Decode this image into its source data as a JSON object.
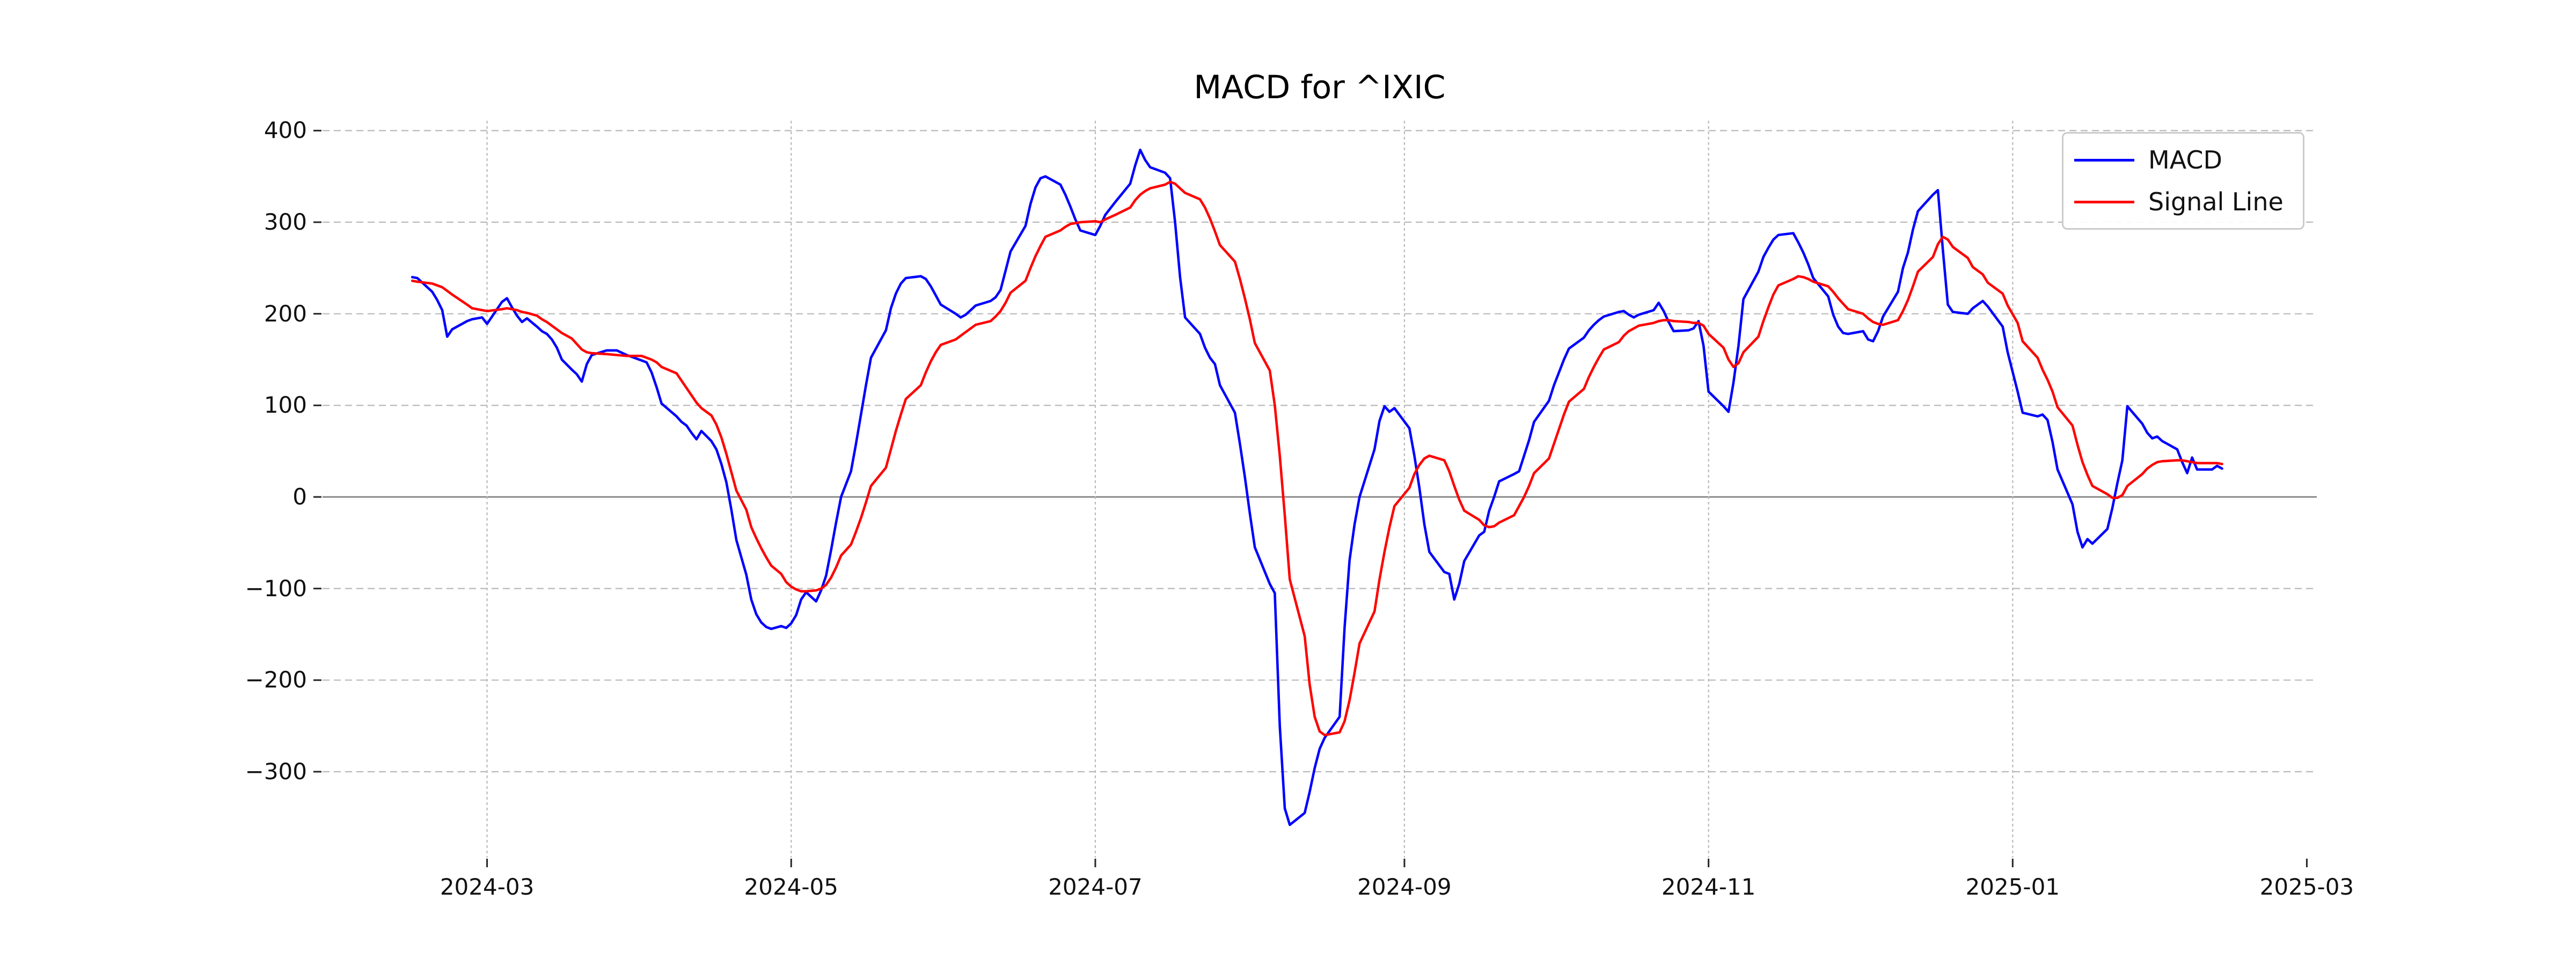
{
  "title": "MACD for ^IXIC",
  "legend": {
    "items": [
      {
        "label": "MACD",
        "color": "#0000ff"
      },
      {
        "label": "Signal Line",
        "color": "#ff0000"
      }
    ]
  },
  "colors": {
    "macd_line": "#0000ff",
    "signal_line": "#ff0000",
    "grid": "#b9b9b9",
    "zero_line": "#808080",
    "tick": "#262626",
    "text": "#111111",
    "legend_border": "#cbcbcb"
  },
  "chart_data": {
    "type": "line",
    "title": "MACD for ^IXIC",
    "xlabel": "",
    "ylabel": "",
    "legend_position": "upper right",
    "grid": true,
    "zero_line": true,
    "x_axis": {
      "type": "date",
      "tick_labels": [
        "2024-03",
        "2024-05",
        "2024-07",
        "2024-09",
        "2024-11",
        "2025-01",
        "2025-03"
      ],
      "range": [
        "2024-01-28",
        "2025-03-02"
      ]
    },
    "y_axis": {
      "ticks": [
        400,
        300,
        200,
        100,
        0,
        -100,
        -200,
        -300
      ],
      "range": [
        -395,
        415
      ]
    },
    "points": [
      [
        "2024-02-15",
        240,
        236
      ],
      [
        "2024-02-16",
        239,
        235
      ],
      [
        "2024-02-19",
        224,
        233
      ],
      [
        "2024-02-20",
        215,
        231
      ],
      [
        "2024-02-21",
        204,
        229
      ],
      [
        "2024-02-22",
        175,
        225
      ],
      [
        "2024-02-23",
        183,
        221
      ],
      [
        "2024-02-26",
        192,
        210
      ],
      [
        "2024-02-27",
        194,
        206
      ],
      [
        "2024-02-29",
        196,
        204
      ],
      [
        "2024-03-01",
        189,
        203
      ],
      [
        "2024-03-04",
        213,
        205
      ],
      [
        "2024-03-05",
        217,
        206
      ],
      [
        "2024-03-06",
        207,
        205
      ],
      [
        "2024-03-07",
        198,
        204
      ],
      [
        "2024-03-08",
        191,
        202
      ],
      [
        "2024-03-09",
        195,
        201
      ],
      [
        "2024-03-11",
        186,
        198
      ],
      [
        "2024-03-12",
        181,
        194
      ],
      [
        "2024-03-13",
        178,
        191
      ],
      [
        "2024-03-14",
        172,
        187
      ],
      [
        "2024-03-15",
        163,
        183
      ],
      [
        "2024-03-16",
        150,
        179
      ],
      [
        "2024-03-18",
        139,
        173
      ],
      [
        "2024-03-19",
        134,
        167
      ],
      [
        "2024-03-20",
        126,
        161
      ],
      [
        "2024-03-21",
        145,
        158
      ],
      [
        "2024-03-22",
        155,
        157
      ],
      [
        "2024-03-25",
        160,
        156
      ],
      [
        "2024-03-27",
        160,
        155
      ],
      [
        "2024-03-29",
        155,
        154
      ],
      [
        "2024-04-01",
        149,
        154
      ],
      [
        "2024-04-02",
        147,
        152
      ],
      [
        "2024-04-03",
        136,
        150
      ],
      [
        "2024-04-04",
        120,
        147
      ],
      [
        "2024-04-05",
        102,
        142
      ],
      [
        "2024-04-08",
        88,
        135
      ],
      [
        "2024-04-09",
        82,
        127
      ],
      [
        "2024-04-10",
        78,
        119
      ],
      [
        "2024-04-11",
        70,
        111
      ],
      [
        "2024-04-12",
        63,
        103
      ],
      [
        "2024-04-13",
        72,
        97
      ],
      [
        "2024-04-15",
        61,
        89
      ],
      [
        "2024-04-16",
        52,
        79
      ],
      [
        "2024-04-17",
        36,
        65
      ],
      [
        "2024-04-18",
        16,
        47
      ],
      [
        "2024-04-19",
        -14,
        27
      ],
      [
        "2024-04-20",
        -47,
        7
      ],
      [
        "2024-04-22",
        -85,
        -14
      ],
      [
        "2024-04-23",
        -112,
        -33
      ],
      [
        "2024-04-24",
        -128,
        -45
      ],
      [
        "2024-04-25",
        -137,
        -56
      ],
      [
        "2024-04-26",
        -142,
        -66
      ],
      [
        "2024-04-27",
        -144,
        -75
      ],
      [
        "2024-04-29",
        -141,
        -84
      ],
      [
        "2024-04-30",
        -143,
        -93
      ],
      [
        "2024-05-01",
        -138,
        -98
      ],
      [
        "2024-05-02",
        -129,
        -101
      ],
      [
        "2024-05-03",
        -112,
        -103
      ],
      [
        "2024-05-04",
        -104,
        -103
      ],
      [
        "2024-05-06",
        -114,
        -102
      ],
      [
        "2024-05-07",
        -102,
        -100
      ],
      [
        "2024-05-08",
        -86,
        -96
      ],
      [
        "2024-05-09",
        -58,
        -88
      ],
      [
        "2024-05-10",
        -28,
        -77
      ],
      [
        "2024-05-11",
        0,
        -64
      ],
      [
        "2024-05-13",
        28,
        -52
      ],
      [
        "2024-05-14",
        58,
        -38
      ],
      [
        "2024-05-15",
        90,
        -23
      ],
      [
        "2024-05-16",
        122,
        -6
      ],
      [
        "2024-05-17",
        152,
        12
      ],
      [
        "2024-05-20",
        182,
        32
      ],
      [
        "2024-05-21",
        206,
        52
      ],
      [
        "2024-05-22",
        222,
        72
      ],
      [
        "2024-05-23",
        233,
        90
      ],
      [
        "2024-05-24",
        239,
        107
      ],
      [
        "2024-05-27",
        241,
        122
      ],
      [
        "2024-05-28",
        238,
        136
      ],
      [
        "2024-05-29",
        230,
        148
      ],
      [
        "2024-05-30",
        220,
        158
      ],
      [
        "2024-05-31",
        210,
        166
      ],
      [
        "2024-06-03",
        200,
        172
      ],
      [
        "2024-06-04",
        196,
        176
      ],
      [
        "2024-06-05",
        199,
        180
      ],
      [
        "2024-06-06",
        204,
        184
      ],
      [
        "2024-06-07",
        209,
        188
      ],
      [
        "2024-06-10",
        214,
        192
      ],
      [
        "2024-06-11",
        218,
        197
      ],
      [
        "2024-06-12",
        226,
        203
      ],
      [
        "2024-06-13",
        247,
        212
      ],
      [
        "2024-06-14",
        268,
        223
      ],
      [
        "2024-06-17",
        296,
        236
      ],
      [
        "2024-06-18",
        320,
        250
      ],
      [
        "2024-06-19",
        338,
        263
      ],
      [
        "2024-06-20",
        348,
        274
      ],
      [
        "2024-06-21",
        350,
        284
      ],
      [
        "2024-06-24",
        341,
        291
      ],
      [
        "2024-06-25",
        330,
        295
      ],
      [
        "2024-06-26",
        317,
        298
      ],
      [
        "2024-06-27",
        303,
        299
      ],
      [
        "2024-06-28",
        291,
        300
      ],
      [
        "2024-07-01",
        286,
        301
      ],
      [
        "2024-07-02",
        296,
        300
      ],
      [
        "2024-07-03",
        308,
        303
      ],
      [
        "2024-07-05",
        322,
        308
      ],
      [
        "2024-07-08",
        342,
        316
      ],
      [
        "2024-07-09",
        362,
        324
      ],
      [
        "2024-07-10",
        379,
        330
      ],
      [
        "2024-07-11",
        368,
        334
      ],
      [
        "2024-07-12",
        360,
        337
      ],
      [
        "2024-07-15",
        354,
        341
      ],
      [
        "2024-07-16",
        348,
        344
      ],
      [
        "2024-07-17",
        300,
        342
      ],
      [
        "2024-07-18",
        240,
        337
      ],
      [
        "2024-07-19",
        196,
        332
      ],
      [
        "2024-07-22",
        178,
        325
      ],
      [
        "2024-07-23",
        163,
        316
      ],
      [
        "2024-07-24",
        152,
        304
      ],
      [
        "2024-07-25",
        145,
        290
      ],
      [
        "2024-07-26",
        122,
        275
      ],
      [
        "2024-07-29",
        92,
        257
      ],
      [
        "2024-07-30",
        58,
        238
      ],
      [
        "2024-07-31",
        22,
        217
      ],
      [
        "2024-08-01",
        -18,
        194
      ],
      [
        "2024-08-02",
        -55,
        168
      ],
      [
        "2024-08-05",
        -95,
        138
      ],
      [
        "2024-08-06",
        -105,
        100
      ],
      [
        "2024-08-07",
        -250,
        45
      ],
      [
        "2024-08-08",
        -340,
        -20
      ],
      [
        "2024-08-09",
        -358,
        -90
      ],
      [
        "2024-08-12",
        -345,
        -152
      ],
      [
        "2024-08-13",
        -322,
        -205
      ],
      [
        "2024-08-14",
        -296,
        -240
      ],
      [
        "2024-08-15",
        -275,
        -256
      ],
      [
        "2024-08-16",
        -263,
        -260
      ],
      [
        "2024-08-19",
        -240,
        -257
      ],
      [
        "2024-08-20",
        -143,
        -245
      ],
      [
        "2024-08-21",
        -69,
        -222
      ],
      [
        "2024-08-22",
        -30,
        -192
      ],
      [
        "2024-08-23",
        0,
        -160
      ],
      [
        "2024-08-26",
        52,
        -125
      ],
      [
        "2024-08-27",
        83,
        -90
      ],
      [
        "2024-08-28",
        99,
        -60
      ],
      [
        "2024-08-29",
        93,
        -33
      ],
      [
        "2024-08-30",
        97,
        -10
      ],
      [
        "2024-09-02",
        75,
        10
      ],
      [
        "2024-09-03",
        45,
        25
      ],
      [
        "2024-09-04",
        10,
        35
      ],
      [
        "2024-09-05",
        -30,
        42
      ],
      [
        "2024-09-06",
        -60,
        45
      ],
      [
        "2024-09-09",
        -82,
        40
      ],
      [
        "2024-09-10",
        -84,
        28
      ],
      [
        "2024-09-11",
        -112,
        12
      ],
      [
        "2024-09-12",
        -95,
        -3
      ],
      [
        "2024-09-13",
        -70,
        -15
      ],
      [
        "2024-09-16",
        -42,
        -25
      ],
      [
        "2024-09-17",
        -38,
        -31
      ],
      [
        "2024-09-18",
        -15,
        -33
      ],
      [
        "2024-09-19",
        0,
        -32
      ],
      [
        "2024-09-20",
        17,
        -28
      ],
      [
        "2024-09-23",
        25,
        -20
      ],
      [
        "2024-09-24",
        28,
        -10
      ],
      [
        "2024-09-25",
        45,
        0
      ],
      [
        "2024-09-26",
        62,
        12
      ],
      [
        "2024-09-27",
        82,
        26
      ],
      [
        "2024-09-30",
        105,
        42
      ],
      [
        "2024-10-01",
        122,
        58
      ],
      [
        "2024-10-02",
        136,
        74
      ],
      [
        "2024-10-03",
        150,
        90
      ],
      [
        "2024-10-04",
        162,
        104
      ],
      [
        "2024-10-07",
        174,
        118
      ],
      [
        "2024-10-08",
        182,
        131
      ],
      [
        "2024-10-09",
        188,
        142
      ],
      [
        "2024-10-10",
        193,
        152
      ],
      [
        "2024-10-11",
        197,
        161
      ],
      [
        "2024-10-14",
        202,
        169
      ],
      [
        "2024-10-15",
        203,
        176
      ],
      [
        "2024-10-16",
        199,
        181
      ],
      [
        "2024-10-17",
        196,
        184
      ],
      [
        "2024-10-18",
        199,
        187
      ],
      [
        "2024-10-21",
        204,
        190
      ],
      [
        "2024-10-22",
        212,
        192
      ],
      [
        "2024-10-23",
        203,
        193
      ],
      [
        "2024-10-24",
        191,
        193
      ],
      [
        "2024-10-25",
        181,
        192
      ],
      [
        "2024-10-28",
        182,
        191
      ],
      [
        "2024-10-29",
        184,
        190
      ],
      [
        "2024-10-30",
        192,
        190
      ],
      [
        "2024-10-31",
        165,
        187
      ],
      [
        "2024-11-01",
        115,
        178
      ],
      [
        "2024-11-04",
        99,
        163
      ],
      [
        "2024-11-05",
        93,
        150
      ],
      [
        "2024-11-06",
        125,
        142
      ],
      [
        "2024-11-07",
        165,
        146
      ],
      [
        "2024-11-08",
        216,
        158
      ],
      [
        "2024-11-11",
        246,
        175
      ],
      [
        "2024-11-12",
        262,
        192
      ],
      [
        "2024-11-13",
        272,
        207
      ],
      [
        "2024-11-14",
        281,
        221
      ],
      [
        "2024-11-15",
        286,
        231
      ],
      [
        "2024-11-18",
        288,
        238
      ],
      [
        "2024-11-19",
        278,
        241
      ],
      [
        "2024-11-20",
        267,
        240
      ],
      [
        "2024-11-21",
        254,
        238
      ],
      [
        "2024-11-22",
        239,
        235
      ],
      [
        "2024-11-25",
        219,
        230
      ],
      [
        "2024-11-26",
        199,
        224
      ],
      [
        "2024-11-27",
        186,
        217
      ],
      [
        "2024-11-28",
        179,
        211
      ],
      [
        "2024-11-29",
        178,
        205
      ],
      [
        "2024-12-02",
        181,
        200
      ],
      [
        "2024-12-03",
        172,
        195
      ],
      [
        "2024-12-04",
        170,
        191
      ],
      [
        "2024-12-05",
        181,
        189
      ],
      [
        "2024-12-06",
        197,
        188
      ],
      [
        "2024-12-09",
        224,
        193
      ],
      [
        "2024-12-10",
        250,
        203
      ],
      [
        "2024-12-11",
        267,
        215
      ],
      [
        "2024-12-12",
        292,
        230
      ],
      [
        "2024-12-13",
        312,
        246
      ],
      [
        "2024-12-16",
        330,
        262
      ],
      [
        "2024-12-17",
        335,
        276
      ],
      [
        "2024-12-18",
        270,
        284
      ],
      [
        "2024-12-19",
        210,
        281
      ],
      [
        "2024-12-20",
        202,
        273
      ],
      [
        "2024-12-23",
        200,
        261
      ],
      [
        "2024-12-24",
        206,
        251
      ],
      [
        "2024-12-26",
        214,
        243
      ],
      [
        "2024-12-27",
        208,
        234
      ],
      [
        "2024-12-30",
        186,
        222
      ],
      [
        "2024-12-31",
        158,
        209
      ],
      [
        "2025-01-02",
        115,
        190
      ],
      [
        "2025-01-03",
        92,
        170
      ],
      [
        "2025-01-06",
        88,
        152
      ],
      [
        "2025-01-07",
        90,
        139
      ],
      [
        "2025-01-08",
        84,
        128
      ],
      [
        "2025-01-09",
        60,
        115
      ],
      [
        "2025-01-10",
        30,
        98
      ],
      [
        "2025-01-13",
        -8,
        78
      ],
      [
        "2025-01-14",
        -38,
        57
      ],
      [
        "2025-01-15",
        -55,
        38
      ],
      [
        "2025-01-16",
        -46,
        24
      ],
      [
        "2025-01-17",
        -51,
        12
      ],
      [
        "2025-01-20",
        -35,
        3
      ],
      [
        "2025-01-21",
        -12,
        -1
      ],
      [
        "2025-01-22",
        15,
        -1
      ],
      [
        "2025-01-23",
        40,
        2
      ],
      [
        "2025-01-24",
        99,
        12
      ],
      [
        "2025-01-27",
        80,
        25
      ],
      [
        "2025-01-28",
        70,
        31
      ],
      [
        "2025-01-29",
        64,
        35
      ],
      [
        "2025-01-30",
        66,
        38
      ],
      [
        "2025-01-31",
        61,
        39
      ],
      [
        "2025-02-03",
        52,
        40
      ],
      [
        "2025-02-04",
        38,
        40
      ],
      [
        "2025-02-05",
        26,
        39
      ],
      [
        "2025-02-06",
        43,
        38
      ],
      [
        "2025-02-07",
        30,
        37
      ],
      [
        "2025-02-10",
        30,
        37
      ],
      [
        "2025-02-11",
        34,
        37
      ],
      [
        "2025-02-12",
        31,
        36
      ]
    ],
    "series": [
      {
        "name": "MACD",
        "color": "#0000ff",
        "column": 1
      },
      {
        "name": "Signal Line",
        "color": "#ff0000",
        "column": 2
      }
    ]
  }
}
